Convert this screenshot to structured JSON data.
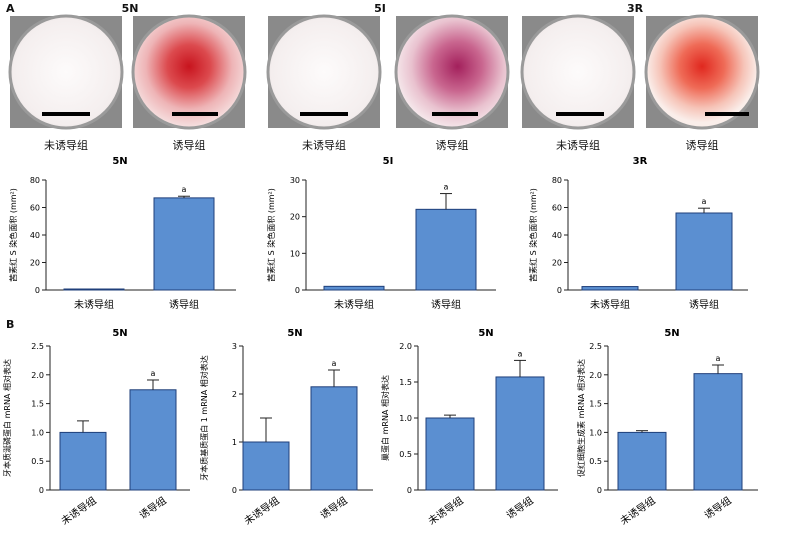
{
  "panels": {
    "a_label": "A",
    "b_label": "B"
  },
  "photos": {
    "groups": [
      {
        "title": "5N",
        "captions": [
          "未诱导组",
          "诱导组"
        ]
      },
      {
        "title": "5I",
        "captions": [
          "未诱导组",
          "诱导组"
        ]
      },
      {
        "title": "3R",
        "captions": [
          "未诱导组",
          "诱导组"
        ]
      }
    ]
  },
  "colors": {
    "bar_fill": "#5b8fd1",
    "bar_stroke": "#1f3f7a",
    "axis": "#222222",
    "stain": "#d23a3a",
    "dish_rim": "#9a9a9a"
  },
  "chart_data": [
    {
      "type": "bar",
      "title": "5N",
      "ylabel": "茜素红 S 染色面积 (mm²)",
      "categories": [
        "未诱导组",
        "诱导组"
      ],
      "values": [
        0.3,
        67
      ],
      "errors": [
        0,
        1.2
      ],
      "sig": [
        "",
        "a"
      ],
      "ylim": [
        0,
        80
      ],
      "yticks": [
        0,
        20,
        40,
        60,
        80
      ]
    },
    {
      "type": "bar",
      "title": "5I",
      "ylabel": "茜素红 S 染色面积 (mm²)",
      "categories": [
        "未诱导组",
        "诱导组"
      ],
      "values": [
        1.0,
        22
      ],
      "errors": [
        0,
        4.3
      ],
      "sig": [
        "",
        "a"
      ],
      "ylim": [
        0,
        30
      ],
      "yticks": [
        0,
        10,
        20,
        30
      ]
    },
    {
      "type": "bar",
      "title": "3R",
      "ylabel": "茜素红 S 染色面积 (mm²)",
      "categories": [
        "未诱导组",
        "诱导组"
      ],
      "values": [
        2.5,
        56
      ],
      "errors": [
        0,
        3.5
      ],
      "sig": [
        "",
        "a"
      ],
      "ylim": [
        0,
        80
      ],
      "yticks": [
        0,
        20,
        40,
        60,
        80
      ]
    },
    {
      "type": "bar",
      "title": "5N",
      "ylabel": "牙本质涎磷蛋白 mRNA 相对表达",
      "categories": [
        "未诱导组",
        "诱导组"
      ],
      "values": [
        1.0,
        1.74
      ],
      "errors": [
        0.2,
        0.17
      ],
      "sig": [
        "",
        "a"
      ],
      "ylim": [
        0,
        2.5
      ],
      "yticks": [
        "0",
        "0.5",
        "1.0",
        "1.5",
        "2.0",
        "2.5"
      ]
    },
    {
      "type": "bar",
      "title": "5N",
      "ylabel": "牙本质基质蛋白 1 mRNA 相对表达",
      "categories": [
        "未诱导组",
        "诱导组"
      ],
      "values": [
        1.0,
        2.15
      ],
      "errors": [
        0.5,
        0.35
      ],
      "sig": [
        "",
        "a"
      ],
      "ylim": [
        0,
        3
      ],
      "yticks": [
        0,
        1,
        2,
        3
      ]
    },
    {
      "type": "bar",
      "title": "5N",
      "ylabel": "巢蛋白 mRNA 相对表达",
      "categories": [
        "未诱导组",
        "诱导组"
      ],
      "values": [
        1.0,
        1.57
      ],
      "errors": [
        0.04,
        0.23
      ],
      "sig": [
        "",
        "a"
      ],
      "ylim": [
        0,
        2.0
      ],
      "yticks": [
        "0",
        "0.5",
        "1.0",
        "1.5",
        "2.0"
      ]
    },
    {
      "type": "bar",
      "title": "5N",
      "ylabel": "促红细胞生成素 mRNA 相对表达",
      "categories": [
        "未诱导组",
        "诱导组"
      ],
      "values": [
        1.0,
        2.02
      ],
      "errors": [
        0.03,
        0.15
      ],
      "sig": [
        "",
        "a"
      ],
      "ylim": [
        0,
        2.5
      ],
      "yticks": [
        "0",
        "0.5",
        "1.0",
        "1.5",
        "2.0",
        "2.5"
      ]
    }
  ]
}
